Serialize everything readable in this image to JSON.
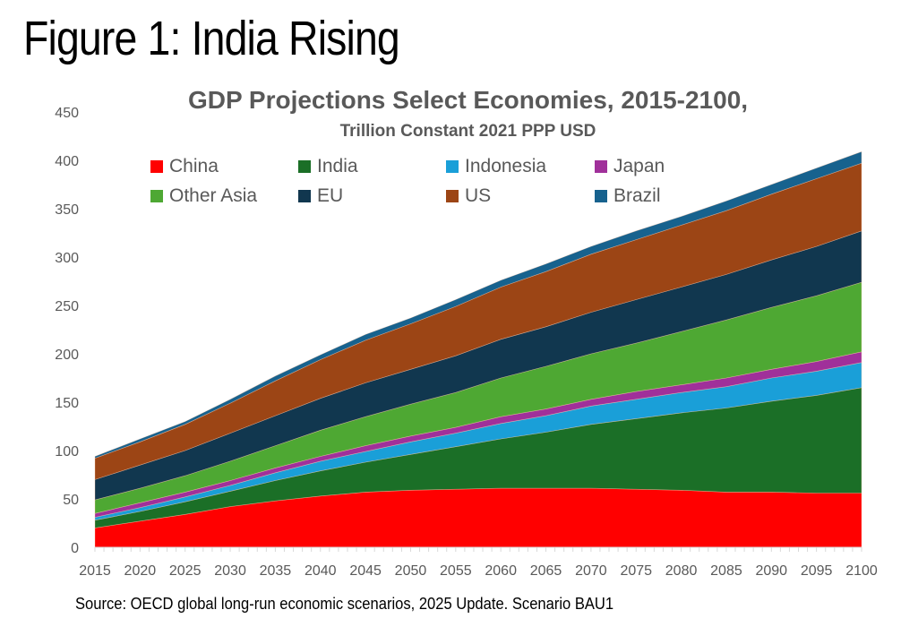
{
  "figure_title": "Figure 1: India Rising",
  "source": "Source: OECD global long-run economic scenarios, 2025 Update. Scenario BAU1",
  "chart_data": {
    "type": "area",
    "stacked": true,
    "title": "GDP Projections Select Economies, 2015-2100,",
    "subtitle": "Trillion Constant 2021 PPP USD",
    "xlabel": "",
    "ylabel": "",
    "ylim": [
      0,
      450
    ],
    "yticks": [
      0,
      50,
      100,
      150,
      200,
      250,
      300,
      350,
      400,
      450
    ],
    "x": [
      2015,
      2020,
      2025,
      2030,
      2035,
      2040,
      2045,
      2050,
      2055,
      2060,
      2065,
      2070,
      2075,
      2080,
      2085,
      2090,
      2095,
      2100
    ],
    "xticks": [
      "2015",
      "2020",
      "2025",
      "2030",
      "2035",
      "2040",
      "2045",
      "2050",
      "2055",
      "2060",
      "2065",
      "2070",
      "2075",
      "2080",
      "2085",
      "2090",
      "2095",
      "2100"
    ],
    "grid": false,
    "legend_position": "top",
    "series": [
      {
        "name": "China",
        "color": "#ff0000",
        "values": [
          20,
          27,
          34,
          42,
          48,
          53,
          57,
          59,
          60,
          61,
          61,
          61,
          60,
          59,
          57,
          57,
          56,
          56
        ]
      },
      {
        "name": "India",
        "color": "#1b6f27",
        "values": [
          8,
          10,
          13,
          16,
          21,
          26,
          31,
          37,
          44,
          51,
          58,
          66,
          73,
          80,
          87,
          94,
          101,
          109
        ]
      },
      {
        "name": "Indonesia",
        "color": "#1a9fd8",
        "values": [
          3,
          4,
          5,
          6,
          8,
          10,
          11,
          13,
          14,
          16,
          17,
          19,
          20,
          21,
          22,
          24,
          25,
          26
        ]
      },
      {
        "name": "Japan",
        "color": "#a0309a",
        "values": [
          4,
          5,
          5,
          5,
          5,
          5,
          6,
          6,
          6,
          7,
          7,
          7,
          8,
          8,
          9,
          9,
          10,
          11
        ]
      },
      {
        "name": "Other Asia",
        "color": "#4ea833",
        "values": [
          14,
          15,
          17,
          20,
          23,
          27,
          30,
          33,
          36,
          40,
          44,
          47,
          50,
          55,
          60,
          64,
          68,
          72
        ]
      },
      {
        "name": "EU",
        "color": "#11374f",
        "values": [
          21,
          24,
          26,
          29,
          31,
          33,
          35,
          36,
          38,
          40,
          41,
          43,
          45,
          46,
          47,
          49,
          51,
          53
        ]
      },
      {
        "name": "US",
        "color": "#9c4515",
        "values": [
          22,
          24,
          27,
          31,
          36,
          40,
          44,
          47,
          51,
          54,
          57,
          60,
          62,
          64,
          66,
          68,
          70,
          70
        ]
      },
      {
        "name": "Brazil",
        "color": "#17628e",
        "values": [
          2,
          3,
          3,
          4,
          5,
          5,
          6,
          6,
          7,
          7,
          8,
          8,
          9,
          9,
          10,
          10,
          11,
          12
        ]
      }
    ]
  },
  "legend": {
    "items": [
      {
        "name": "China",
        "color": "#ff0000"
      },
      {
        "name": "India",
        "color": "#1b6f27"
      },
      {
        "name": "Indonesia",
        "color": "#1a9fd8"
      },
      {
        "name": "Japan",
        "color": "#a0309a"
      },
      {
        "name": "Other Asia",
        "color": "#4ea833"
      },
      {
        "name": "EU",
        "color": "#11374f"
      },
      {
        "name": "US",
        "color": "#9c4515"
      },
      {
        "name": "Brazil",
        "color": "#17628e"
      }
    ]
  }
}
